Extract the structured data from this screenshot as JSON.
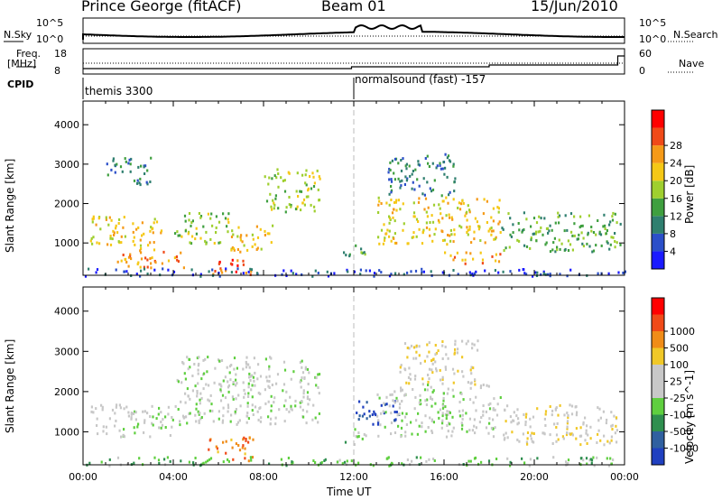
{
  "header": {
    "station": "Prince George (fitACF)",
    "beam": "Beam 01",
    "date": "15/Jun/2010"
  },
  "status_panels": {
    "nsky_label": "N.Sky",
    "nsearch_label": "N.Search",
    "nsky_ticks": [
      "10^5",
      "10^0"
    ],
    "nsearch_ticks": [
      "10^5",
      "10^0"
    ],
    "freq_label_top": "Freq.",
    "freq_label_unit": "[MHz]",
    "freq_ticks": [
      "18",
      "8"
    ],
    "nave_label": "Nave",
    "nave_ticks": [
      "60",
      "0"
    ],
    "cpid_label": "CPID",
    "cpid_segments": [
      {
        "start_hour": 0,
        "text": "themis 3300"
      },
      {
        "start_hour": 12,
        "text": "normalsound (fast) -157"
      }
    ]
  },
  "chart_data": [
    {
      "type": "heatmap",
      "quantity": "Power",
      "ylabel": "Slant Range [km]",
      "yticks": [
        1000,
        2000,
        3000,
        4000
      ],
      "ylim": [
        180,
        4600
      ],
      "xlim": [
        0,
        24
      ],
      "colorbar": {
        "label": "Power [dB]",
        "ticks": [
          "4",
          "8",
          "12",
          "16",
          "20",
          "24",
          "28"
        ],
        "colors": [
          "#1a1aff",
          "#2b4fc9",
          "#2f7f6f",
          "#3f9f3f",
          "#9fcf2f",
          "#f5c816",
          "#f59a18",
          "#f04a18",
          "#ff0000"
        ]
      },
      "regions": [
        {
          "t0": 0.3,
          "t1": 3.5,
          "r0": 900,
          "r1": 1700,
          "level": 5
        },
        {
          "t0": 1.5,
          "t1": 4.5,
          "r0": 400,
          "r1": 900,
          "level": 6
        },
        {
          "t0": 4.0,
          "t1": 6.5,
          "r0": 1000,
          "r1": 1800,
          "level": 4
        },
        {
          "t0": 5.5,
          "t1": 7.5,
          "r0": 200,
          "r1": 600,
          "level": 7
        },
        {
          "t0": 6.5,
          "t1": 8.5,
          "r0": 800,
          "r1": 1500,
          "level": 5
        },
        {
          "t0": 8.0,
          "t1": 10.5,
          "r0": 1800,
          "r1": 2900,
          "level": 4
        },
        {
          "t0": 1.0,
          "t1": 3.0,
          "r0": 2500,
          "r1": 3200,
          "level": 2
        },
        {
          "t0": 11.5,
          "t1": 12.5,
          "r0": 700,
          "r1": 1100,
          "level": 3
        },
        {
          "t0": 13.0,
          "t1": 18.5,
          "r0": 1000,
          "r1": 2200,
          "level": 5
        },
        {
          "t0": 13.5,
          "t1": 16.5,
          "r0": 2200,
          "r1": 3300,
          "level": 2
        },
        {
          "t0": 16.0,
          "t1": 18.5,
          "r0": 500,
          "r1": 800,
          "level": 6
        },
        {
          "t0": 18.5,
          "t1": 23.8,
          "r0": 800,
          "r1": 1800,
          "level": 3
        },
        {
          "t0": 0.0,
          "t1": 24.0,
          "r0": 180,
          "r1": 380,
          "level": 1
        }
      ]
    },
    {
      "type": "heatmap",
      "quantity": "Velocity",
      "ylabel": "Slant Range [km]",
      "xlabel": "Time UT",
      "xticks": [
        "00:00",
        "04:00",
        "08:00",
        "12:00",
        "16:00",
        "20:00",
        "00:00"
      ],
      "yticks": [
        1000,
        2000,
        3000,
        4000
      ],
      "ylim": [
        180,
        4600
      ],
      "xlim": [
        0,
        24
      ],
      "colorbar": {
        "label": "Velocity [m s^-1]",
        "ticks": [
          "1000",
          "500",
          "100",
          "25",
          "-25",
          "-100",
          "-500",
          "-1000"
        ],
        "colors": [
          "#2040c0",
          "#3060a0",
          "#2f8f4f",
          "#5fcf3f",
          "#c8c8c8",
          "#c8c8c8",
          "#f0c828",
          "#f08c18",
          "#f04a18",
          "#ff0000"
        ]
      },
      "regions": [
        {
          "t0": 0.3,
          "t1": 4.0,
          "r0": 900,
          "r1": 1700,
          "level": 4
        },
        {
          "t0": 4.0,
          "t1": 10.5,
          "r0": 1200,
          "r1": 2900,
          "level": 4
        },
        {
          "t0": 5.5,
          "t1": 7.5,
          "r0": 300,
          "r1": 900,
          "level": 7
        },
        {
          "t0": 11.5,
          "t1": 12.5,
          "r0": 700,
          "r1": 1100,
          "level": 3
        },
        {
          "t0": 12.0,
          "t1": 14.0,
          "r0": 1200,
          "r1": 1800,
          "level": 0
        },
        {
          "t0": 13.0,
          "t1": 18.5,
          "r0": 900,
          "r1": 2200,
          "level": 4
        },
        {
          "t0": 14.0,
          "t1": 17.5,
          "r0": 2200,
          "r1": 3300,
          "level": 5
        },
        {
          "t0": 18.5,
          "t1": 23.8,
          "r0": 700,
          "r1": 1700,
          "level": 5
        },
        {
          "t0": 0.0,
          "t1": 24.0,
          "r0": 180,
          "r1": 400,
          "level": 3
        }
      ]
    }
  ]
}
